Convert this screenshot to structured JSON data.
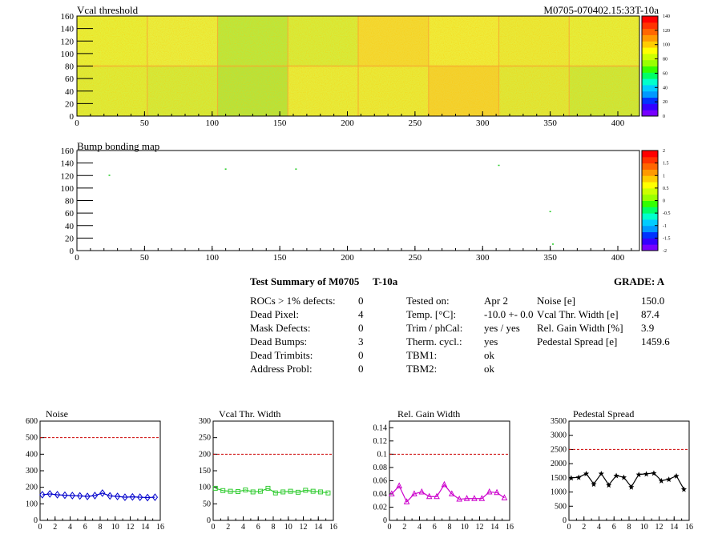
{
  "header": {
    "title_left": "Vcal threshold",
    "title_right": "M0705-070402.15:33T-10a",
    "bump_title": "Bump bonding map"
  },
  "map_axes": {
    "x_ticks": [
      "0",
      "50",
      "100",
      "150",
      "200",
      "250",
      "300",
      "350",
      "400"
    ],
    "y_ticks": [
      "0",
      "20",
      "40",
      "60",
      "80",
      "100",
      "120",
      "140",
      "160"
    ],
    "xlim": [
      0,
      416
    ],
    "ylim": [
      0,
      160
    ]
  },
  "palette": {
    "scale1": [
      "140",
      "120",
      "100",
      "80",
      "60",
      "40",
      "20",
      "0"
    ],
    "scale2": [
      "2",
      "1.5",
      "1",
      "0.5",
      "0",
      "-0.5",
      "-1",
      "-1.5",
      "-2"
    ],
    "colors": [
      "#7700ff",
      "#3300ff",
      "#0033ff",
      "#0099ff",
      "#00ccff",
      "#00ffcc",
      "#00ff66",
      "#33ff00",
      "#99ff00",
      "#ccff00",
      "#ffff00",
      "#ffcc00",
      "#ff9900",
      "#ff6600",
      "#ff3300",
      "#ff0000"
    ]
  },
  "bump_points": [
    {
      "x": 24,
      "y": 120
    },
    {
      "x": 110,
      "y": 130
    },
    {
      "x": 162,
      "y": 130
    },
    {
      "x": 312,
      "y": 136
    },
    {
      "x": 350,
      "y": 62
    },
    {
      "x": 352,
      "y": 10
    }
  ],
  "summary": {
    "title": "Test Summary of M0705",
    "subtitle": "T-10a",
    "grade": "GRADE:  A",
    "col1": [
      {
        "label": "ROCs > 1% defects:",
        "value": "0"
      },
      {
        "label": "Dead Pixel:",
        "value": "4"
      },
      {
        "label": "Mask Defects:",
        "value": "0"
      },
      {
        "label": "Dead Bumps:",
        "value": "3"
      },
      {
        "label": "Dead Trimbits:",
        "value": "0"
      },
      {
        "label": "Address Probl:",
        "value": "0"
      }
    ],
    "col2": [
      {
        "label": "Tested on:",
        "value": "Apr 2"
      },
      {
        "label": "Temp. [°C]:",
        "value": "-10.0 +- 0.0"
      },
      {
        "label": "Trim / phCal:",
        "value": "yes / yes"
      },
      {
        "label": "Therm. cycl.:",
        "value": "yes"
      },
      {
        "label": "TBM1:",
        "value": "ok"
      },
      {
        "label": "TBM2:",
        "value": "ok"
      }
    ],
    "col3": [
      {
        "label": "Noise [e]",
        "value": "150.0"
      },
      {
        "label": "Vcal Thr. Width [e]",
        "value": "87.4"
      },
      {
        "label": "Rel. Gain Width [%]",
        "value": "3.9"
      },
      {
        "label": "Pedestal Spread [e]",
        "value": "1459.6"
      }
    ]
  },
  "chart_data": [
    {
      "type": "line",
      "title": "Noise",
      "x": [
        0,
        1,
        2,
        3,
        4,
        5,
        6,
        7,
        8,
        9,
        10,
        11,
        12,
        13,
        14,
        15
      ],
      "values": [
        155,
        160,
        155,
        152,
        150,
        148,
        145,
        150,
        165,
        148,
        145,
        140,
        142,
        140,
        138,
        140
      ],
      "xlim": [
        0,
        16
      ],
      "ylim": [
        0,
        600
      ],
      "threshold": 500,
      "yticks": [
        "0",
        "100",
        "200",
        "300",
        "400",
        "500",
        "600"
      ],
      "xticks": [
        "0",
        "2",
        "4",
        "6",
        "8",
        "10",
        "12",
        "14",
        "16"
      ],
      "color": "#0000cc",
      "marker": "diamond"
    },
    {
      "type": "line",
      "title": "Vcal Thr. Width",
      "x": [
        0,
        1,
        2,
        3,
        4,
        5,
        6,
        7,
        8,
        9,
        10,
        11,
        12,
        13,
        14,
        15
      ],
      "values": [
        97,
        90,
        88,
        87,
        92,
        86,
        88,
        97,
        83,
        86,
        88,
        85,
        91,
        88,
        86,
        83
      ],
      "xlim": [
        0,
        16
      ],
      "ylim": [
        0,
        300
      ],
      "threshold": 200,
      "yticks": [
        "0",
        "50",
        "100",
        "150",
        "200",
        "250",
        "300"
      ],
      "xticks": [
        "0",
        "2",
        "4",
        "6",
        "8",
        "10",
        "12",
        "14",
        "16"
      ],
      "color": "#33cc33",
      "marker": "square"
    },
    {
      "type": "line",
      "title": "Rel. Gain Width",
      "x": [
        0,
        1,
        2,
        3,
        4,
        5,
        6,
        7,
        8,
        9,
        10,
        11,
        12,
        13,
        14,
        15
      ],
      "values": [
        0.04,
        0.052,
        0.028,
        0.04,
        0.043,
        0.036,
        0.036,
        0.054,
        0.04,
        0.032,
        0.033,
        0.033,
        0.033,
        0.043,
        0.042,
        0.034
      ],
      "xlim": [
        0,
        16
      ],
      "ylim": [
        0,
        0.15
      ],
      "threshold": 0.1,
      "yticks": [
        "0",
        "0.02",
        "0.04",
        "0.06",
        "0.08",
        "0.1",
        "0.12",
        "0.14"
      ],
      "xticks": [
        "0",
        "2",
        "4",
        "6",
        "8",
        "10",
        "12",
        "14",
        "16"
      ],
      "color": "#cc00cc",
      "marker": "triangle"
    },
    {
      "type": "line",
      "title": "Pedestal Spread",
      "x": [
        0,
        1,
        2,
        3,
        4,
        5,
        6,
        7,
        8,
        9,
        10,
        11,
        12,
        13,
        14,
        15
      ],
      "values": [
        1500,
        1520,
        1650,
        1280,
        1650,
        1250,
        1580,
        1520,
        1180,
        1620,
        1640,
        1670,
        1400,
        1450,
        1570,
        1100
      ],
      "xlim": [
        0,
        16
      ],
      "ylim": [
        0,
        3500
      ],
      "threshold": 2500,
      "yticks": [
        "0",
        "500",
        "1000",
        "1500",
        "2000",
        "2500",
        "3000",
        "3500"
      ],
      "xticks": [
        "0",
        "2",
        "4",
        "6",
        "8",
        "10",
        "12",
        "14",
        "16"
      ],
      "color": "#000000",
      "marker": "star"
    }
  ]
}
